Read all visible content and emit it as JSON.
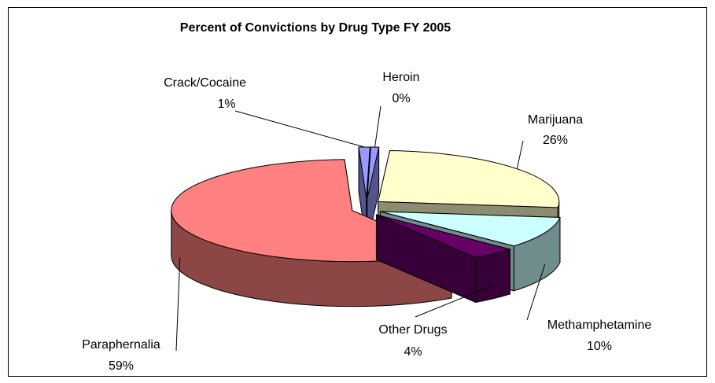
{
  "chart_data": {
    "type": "pie",
    "title": "Percent of Convictions by Drug Type FY 2005",
    "slices": [
      {
        "label": "Heroin",
        "percent": 0,
        "display": "0%",
        "color": "#9999ff",
        "exploded": true
      },
      {
        "label": "Marijuana",
        "percent": 26,
        "display": "26%",
        "color": "#ffffcc",
        "exploded": true
      },
      {
        "label": "Methamphetamine",
        "percent": 10,
        "display": "10%",
        "color": "#ccffff",
        "exploded": true
      },
      {
        "label": "Other Drugs",
        "percent": 4,
        "display": "4%",
        "color": "#660066",
        "exploded": true
      },
      {
        "label": "Paraphernalia",
        "percent": 59,
        "display": "59%",
        "color": "#ff8080",
        "exploded": true
      },
      {
        "label": "Crack/Cocaine",
        "percent": 1,
        "display": "1%",
        "color": "#9999ff",
        "exploded": true
      }
    ],
    "style": "3d-exploded",
    "legend": "none"
  }
}
